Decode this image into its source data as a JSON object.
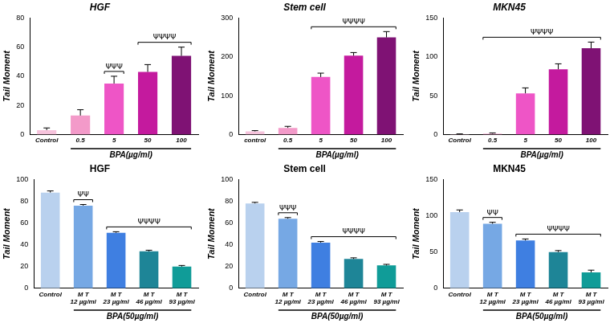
{
  "chart_data": [
    {
      "type": "bar",
      "title": "HGF",
      "ylabel": "Tail Moment",
      "xlabel": "BPA(µg/ml)",
      "categories": [
        "Control",
        "0.5",
        "5",
        "50",
        "100"
      ],
      "values": [
        3,
        13,
        35,
        43,
        54
      ],
      "errors": [
        1.5,
        4,
        5,
        5,
        6
      ],
      "colors": [
        "#f6c3dc",
        "#f39ac9",
        "#ee55c6",
        "#c41a9e",
        "#7f1274"
      ],
      "ylim": [
        0,
        80
      ],
      "yticks": [
        0,
        20,
        40,
        60,
        80
      ],
      "grid": false,
      "annotations": [
        {
          "text": "ΨΨΨ",
          "from": "5",
          "to": "5"
        },
        {
          "text": "ΨΨΨΨ",
          "from": "50",
          "to": "100"
        }
      ]
    },
    {
      "type": "bar",
      "title": "Stem cell",
      "ylabel": "Tail Moment",
      "xlabel": "BPA(µg/ml)",
      "categories": [
        "control",
        "0.5",
        "5",
        "50",
        "100"
      ],
      "values": [
        8,
        17,
        148,
        203,
        250
      ],
      "errors": [
        2,
        4,
        10,
        8,
        15
      ],
      "colors": [
        "#f6c3dc",
        "#f39ac9",
        "#ee55c6",
        "#c41a9e",
        "#7f1274"
      ],
      "ylim": [
        0,
        300
      ],
      "yticks": [
        0,
        100,
        200,
        300
      ],
      "grid": false,
      "annotations": [
        {
          "text": "ΨΨΨΨ",
          "from": "5",
          "to": "100"
        }
      ]
    },
    {
      "type": "bar",
      "title": "MKN45",
      "ylabel": "Tail Moment",
      "xlabel": "BPA(µg/ml)",
      "categories": [
        "Control",
        "0.5",
        "5",
        "50",
        "100"
      ],
      "values": [
        0.5,
        1,
        53,
        84,
        111
      ],
      "errors": [
        0.3,
        1,
        7,
        7,
        8
      ],
      "colors": [
        "#f6c3dc",
        "#f39ac9",
        "#ee55c6",
        "#c41a9e",
        "#7f1274"
      ],
      "ylim": [
        0,
        150
      ],
      "yticks": [
        0,
        50,
        100,
        150
      ],
      "grid": false,
      "annotations": [
        {
          "text": "ΨΨΨΨ",
          "from": "0.5",
          "to": "100"
        }
      ]
    },
    {
      "type": "bar",
      "title": "HGF",
      "ylabel": "Tail Moment",
      "xlabel": "BPA(50µg/ml)",
      "categories": [
        "Control",
        "M T 12 µg/ml",
        "M T 23 µg/ml",
        "M T 46 µg/ml",
        "M T 93 µg/ml"
      ],
      "values": [
        88,
        76,
        51,
        34,
        20
      ],
      "errors": [
        1.5,
        1,
        1,
        1,
        1
      ],
      "colors": [
        "#b9d1ee",
        "#76a8e4",
        "#3f7fe1",
        "#1e8597",
        "#109c98"
      ],
      "ylim": [
        0,
        100
      ],
      "yticks": [
        0,
        20,
        40,
        60,
        80,
        100
      ],
      "grid": false,
      "annotations": [
        {
          "text": "ΨΨ",
          "from": "M T 12 µg/ml",
          "to": "M T 12 µg/ml"
        },
        {
          "text": "ΨΨΨΨ",
          "from": "M T 23 µg/ml",
          "to": "M T 93 µg/ml"
        }
      ]
    },
    {
      "type": "bar",
      "title": "Stem cell",
      "ylabel": "Tail Moment",
      "xlabel": "BPA(50µg/ml)",
      "categories": [
        "Control",
        "M T 12 µg/ml",
        "M T 23 µg/ml",
        "M T 46 µg/ml",
        "M T 93 µg/ml"
      ],
      "values": [
        78,
        64,
        42,
        27,
        21
      ],
      "errors": [
        1,
        1,
        1,
        1,
        1
      ],
      "colors": [
        "#b9d1ee",
        "#76a8e4",
        "#3f7fe1",
        "#1e8597",
        "#109c98"
      ],
      "ylim": [
        0,
        100
      ],
      "yticks": [
        0,
        20,
        40,
        60,
        80,
        100
      ],
      "grid": false,
      "annotations": [
        {
          "text": "ΨΨΨ",
          "from": "M T 12 µg/ml",
          "to": "M T 12 µg/ml"
        },
        {
          "text": "ΨΨΨΨ",
          "from": "M T 23 µg/ml",
          "to": "M T 93 µg/ml"
        }
      ]
    },
    {
      "type": "bar",
      "title": "MKN45",
      "ylabel": "Tail Moment",
      "xlabel": "BPA(50µg/ml)",
      "categories": [
        "Control",
        "M T 12 µg/ml",
        "M T 23 µg/ml",
        "M T 46 µg/ml",
        "M T 93 µg/ml"
      ],
      "values": [
        105,
        89,
        66,
        50,
        22
      ],
      "errors": [
        3,
        2,
        2,
        2,
        3
      ],
      "colors": [
        "#b9d1ee",
        "#76a8e4",
        "#3f7fe1",
        "#1e8597",
        "#109c98"
      ],
      "ylim": [
        0,
        150
      ],
      "yticks": [
        0,
        50,
        100,
        150
      ],
      "grid": false,
      "annotations": [
        {
          "text": "ΨΨ",
          "from": "M T 12 µg/ml",
          "to": "M T 12 µg/ml"
        },
        {
          "text": "ΨΨΨΨ",
          "from": "M T 23 µg/ml",
          "to": "M T 93 µg/ml"
        }
      ]
    }
  ]
}
